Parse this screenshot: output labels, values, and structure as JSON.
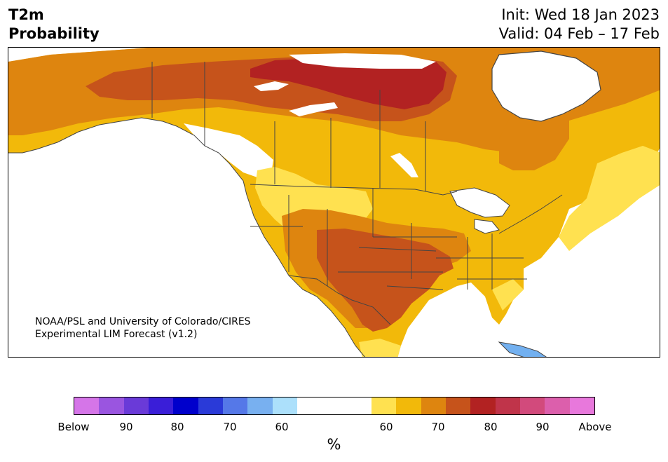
{
  "header": {
    "title_line1": "T2m",
    "title_line2": "Probability",
    "init": "Init: Wed 18 Jan 2023",
    "valid": "Valid: 04 Feb – 17 Feb"
  },
  "map": {
    "credit_line1": "NOAA/PSL and University of Colorado/CIRES",
    "credit_line2": "Experimental LIM Forecast (v1.2)",
    "colors": {
      "above_80_90": "#b22222",
      "above_70_80": "#c6531b",
      "above_60_70": "#de850f",
      "above_50_60": "#f2b90a",
      "above_40_50": "#ffe150",
      "near_normal": "#ffffff",
      "below_40_50": "#a8d8f8",
      "below_50_60": "#72b0f0",
      "border": "#444444"
    }
  },
  "colorbar": {
    "swatches": [
      "#d575e8",
      "#9a55e0",
      "#6a3ad8",
      "#3a1ed8",
      "#0000cc",
      "#2a3ad8",
      "#5578e8",
      "#78b0f0",
      "#ace0fb",
      "#ffffff",
      "#ffe150",
      "#f2b90a",
      "#de850f",
      "#c6531b",
      "#b22222",
      "#c0344a",
      "#d24a7c",
      "#dc5fac",
      "#e878dc"
    ],
    "labels": [
      "Below",
      "90",
      "80",
      "70",
      "60",
      "60",
      "70",
      "80",
      "90",
      "Above"
    ],
    "unit": "%"
  }
}
